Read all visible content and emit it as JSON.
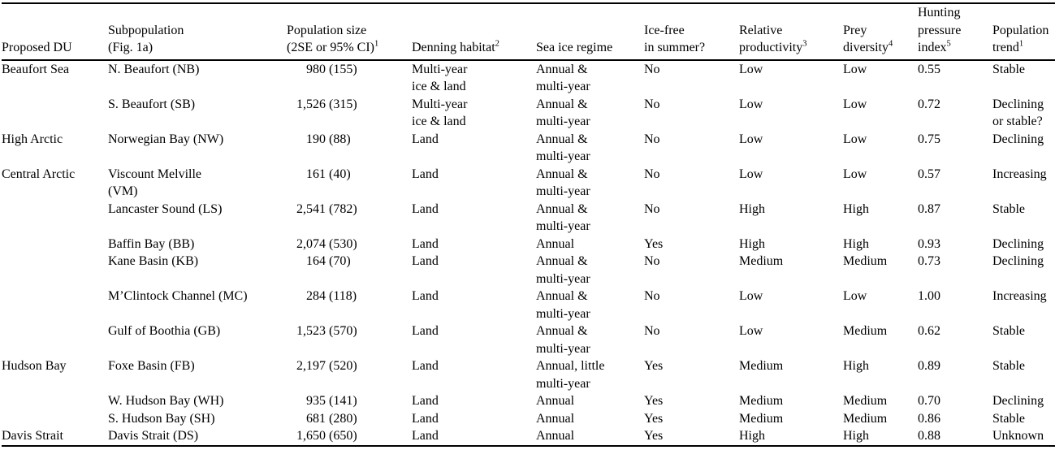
{
  "colors": {
    "text": "#000000",
    "background": "#ffffff",
    "rule": "#000000"
  },
  "table": {
    "columns": [
      {
        "id": "proposed_du",
        "label": "Proposed DU",
        "sup": ""
      },
      {
        "id": "subpopulation",
        "label": "Subpopulation\n(Fig. 1a)",
        "sup": ""
      },
      {
        "id": "population",
        "label": "Population size\n(2SE or 95% CI)",
        "sup": "1"
      },
      {
        "id": "denning",
        "label": "Denning habitat",
        "sup": "2"
      },
      {
        "id": "sea_ice",
        "label": "Sea ice regime",
        "sup": ""
      },
      {
        "id": "ice_free",
        "label": "Ice-free\nin summer?",
        "sup": ""
      },
      {
        "id": "productivity",
        "label": "Relative\nproductivity",
        "sup": "3"
      },
      {
        "id": "prey",
        "label": "Prey\ndiversity",
        "sup": "4"
      },
      {
        "id": "hunting",
        "label": "Hunting\npressure\nindex",
        "sup": "5"
      },
      {
        "id": "trend",
        "label": "Population\ntrend",
        "sup": "1"
      }
    ],
    "rows": [
      {
        "du": "Beaufort Sea",
        "subpopulation": "N. Beaufort (NB)",
        "population": "980",
        "ci": "(155)",
        "denning": "Multi-year\nice & land",
        "sea_ice": "Annual &\nmulti-year",
        "ice_free": "No",
        "productivity": "Low",
        "prey": "Low",
        "hunting_index": "0.55",
        "trend": "Stable"
      },
      {
        "du": "",
        "subpopulation": "S. Beaufort (SB)",
        "population": "1,526",
        "ci": "(315)",
        "denning": "Multi-year\nice & land",
        "sea_ice": "Annual &\nmulti-year",
        "ice_free": "No",
        "productivity": "Low",
        "prey": "Low",
        "hunting_index": "0.72",
        "trend": "Declining\nor stable?"
      },
      {
        "du": "High Arctic",
        "subpopulation": "Norwegian Bay (NW)",
        "population": "190",
        "ci": "(88)",
        "denning": "Land",
        "sea_ice": "Annual &\nmulti-year",
        "ice_free": "No",
        "productivity": "Low",
        "prey": "Low",
        "hunting_index": "0.75",
        "trend": "Declining"
      },
      {
        "du": "Central Arctic",
        "subpopulation": "Viscount Melville\n(VM)",
        "population": "161",
        "ci": "(40)",
        "denning": "Land",
        "sea_ice": "Annual &\nmulti-year",
        "ice_free": "No",
        "productivity": "Low",
        "prey": "Low",
        "hunting_index": "0.57",
        "trend": "Increasing"
      },
      {
        "du": "",
        "subpopulation": "Lancaster Sound (LS)",
        "population": "2,541",
        "ci": "(782)",
        "denning": "Land",
        "sea_ice": "Annual &\nmulti-year",
        "ice_free": "No",
        "productivity": "High",
        "prey": "High",
        "hunting_index": "0.87",
        "trend": "Stable"
      },
      {
        "du": "",
        "subpopulation": "Baffin Bay (BB)",
        "population": "2,074",
        "ci": "(530)",
        "denning": "Land",
        "sea_ice": "Annual",
        "ice_free": "Yes",
        "productivity": "High",
        "prey": "High",
        "hunting_index": "0.93",
        "trend": "Declining"
      },
      {
        "du": "",
        "subpopulation": "Kane Basin (KB)",
        "population": "164",
        "ci": "(70)",
        "denning": "Land",
        "sea_ice": "Annual &\nmulti-year",
        "ice_free": "No",
        "productivity": "Medium",
        "prey": "Medium",
        "hunting_index": "0.73",
        "trend": "Declining"
      },
      {
        "du": "",
        "subpopulation": "M’Clintock Channel (MC)",
        "population": "284",
        "ci": "(118)",
        "denning": "Land",
        "sea_ice": "Annual &\nmulti-year",
        "ice_free": "No",
        "productivity": "Low",
        "prey": "Low",
        "hunting_index": "1.00",
        "trend": "Increasing"
      },
      {
        "du": "",
        "subpopulation": "Gulf of Boothia (GB)",
        "population": "1,523",
        "ci": "(570)",
        "denning": "Land",
        "sea_ice": "Annual &\nmulti-year",
        "ice_free": "No",
        "productivity": "Low",
        "prey": "Medium",
        "hunting_index": "0.62",
        "trend": "Stable"
      },
      {
        "du": "Hudson Bay",
        "subpopulation": "Foxe Basin (FB)",
        "population": "2,197",
        "ci": "(520)",
        "denning": "Land",
        "sea_ice": "Annual, little\nmulti-year",
        "ice_free": "Yes",
        "productivity": "Medium",
        "prey": "High",
        "hunting_index": "0.89",
        "trend": "Stable"
      },
      {
        "du": "",
        "subpopulation": "W. Hudson Bay (WH)",
        "population": "935",
        "ci": "(141)",
        "denning": "Land",
        "sea_ice": "Annual",
        "ice_free": "Yes",
        "productivity": "Medium",
        "prey": "Medium",
        "hunting_index": "0.70",
        "trend": "Declining"
      },
      {
        "du": "",
        "subpopulation": "S. Hudson Bay (SH)",
        "population": "681",
        "ci": "(280)",
        "denning": "Land",
        "sea_ice": "Annual",
        "ice_free": "Yes",
        "productivity": "Medium",
        "prey": "Medium",
        "hunting_index": "0.86",
        "trend": "Stable"
      },
      {
        "du": "Davis Strait",
        "subpopulation": "Davis Strait (DS)",
        "population": "1,650",
        "ci": "(650)",
        "denning": "Land",
        "sea_ice": "Annual",
        "ice_free": "Yes",
        "productivity": "High",
        "prey": "High",
        "hunting_index": "0.88",
        "trend": "Unknown"
      }
    ]
  }
}
